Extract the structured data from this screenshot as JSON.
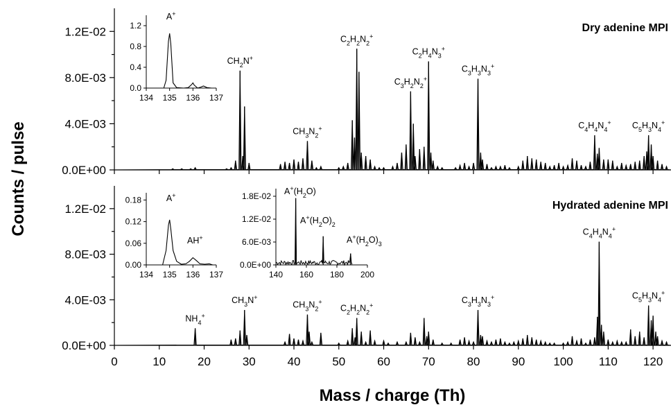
{
  "ylabel": "Counts / pulse",
  "xlabel": "Mass / charge (Th)",
  "chart_data": [
    {
      "type": "line",
      "title": "Dry adenine MPI",
      "xlim": [
        0,
        124
      ],
      "ylim": [
        0,
        0.014
      ],
      "yticks": [
        "0.0E+00",
        "4.0E-03",
        "8.0E-03",
        "1.2E-02"
      ],
      "ytick_values": [
        0,
        0.004,
        0.008,
        0.012
      ],
      "peaks": [
        [
          13,
          0.0001
        ],
        [
          15,
          0.0001
        ],
        [
          17,
          0.0001
        ],
        [
          18,
          0.0002
        ],
        [
          25,
          0.0001
        ],
        [
          26,
          0.0002
        ],
        [
          27,
          0.0008
        ],
        [
          28,
          0.0086
        ],
        [
          28.6,
          0.0012
        ],
        [
          29,
          0.0055
        ],
        [
          30,
          0.0006
        ],
        [
          37,
          0.0005
        ],
        [
          38,
          0.0007
        ],
        [
          39,
          0.0006
        ],
        [
          40,
          0.0009
        ],
        [
          41,
          0.0007
        ],
        [
          42,
          0.001
        ],
        [
          43,
          0.0025
        ],
        [
          44,
          0.0008
        ],
        [
          45,
          0.0002
        ],
        [
          46,
          0.0003
        ],
        [
          50,
          0.0002
        ],
        [
          51,
          0.0003
        ],
        [
          52,
          0.0006
        ],
        [
          53,
          0.0043
        ],
        [
          53.5,
          0.0028
        ],
        [
          54,
          0.0105
        ],
        [
          54.5,
          0.0085
        ],
        [
          55,
          0.0015
        ],
        [
          56,
          0.0012
        ],
        [
          57,
          0.0009
        ],
        [
          58,
          0.0003
        ],
        [
          59,
          0.0002
        ],
        [
          60,
          0.0002
        ],
        [
          62,
          0.0003
        ],
        [
          63,
          0.0006
        ],
        [
          64,
          0.0015
        ],
        [
          65,
          0.0022
        ],
        [
          66,
          0.0068
        ],
        [
          66.6,
          0.004
        ],
        [
          67,
          0.0012
        ],
        [
          68,
          0.0018
        ],
        [
          69,
          0.002
        ],
        [
          70,
          0.0094
        ],
        [
          70.5,
          0.0015
        ],
        [
          71,
          0.0008
        ],
        [
          72,
          0.0003
        ],
        [
          73,
          0.0002
        ],
        [
          76,
          0.0002
        ],
        [
          77,
          0.0004
        ],
        [
          78,
          0.0006
        ],
        [
          79,
          0.0003
        ],
        [
          80,
          0.0006
        ],
        [
          81,
          0.0079
        ],
        [
          81.6,
          0.0015
        ],
        [
          82,
          0.0009
        ],
        [
          83,
          0.0005
        ],
        [
          84,
          0.0002
        ],
        [
          85,
          0.0003
        ],
        [
          86,
          0.0003
        ],
        [
          87,
          0.0004
        ],
        [
          88,
          0.0002
        ],
        [
          90,
          0.0003
        ],
        [
          91,
          0.0008
        ],
        [
          92,
          0.0012
        ],
        [
          93,
          0.001
        ],
        [
          94,
          0.0009
        ],
        [
          95,
          0.0007
        ],
        [
          96,
          0.0006
        ],
        [
          97,
          0.0003
        ],
        [
          98,
          0.0004
        ],
        [
          99,
          0.0006
        ],
        [
          100,
          0.0003
        ],
        [
          101,
          0.0004
        ],
        [
          102,
          0.001
        ],
        [
          103,
          0.0008
        ],
        [
          104,
          0.0004
        ],
        [
          105,
          0.0003
        ],
        [
          106,
          0.0007
        ],
        [
          107,
          0.003
        ],
        [
          107.6,
          0.0014
        ],
        [
          108,
          0.0019
        ],
        [
          109,
          0.0009
        ],
        [
          110,
          0.0009
        ],
        [
          111,
          0.0008
        ],
        [
          112,
          0.0003
        ],
        [
          113,
          0.0006
        ],
        [
          114,
          0.0004
        ],
        [
          115,
          0.0005
        ],
        [
          116,
          0.0007
        ],
        [
          117,
          0.0008
        ],
        [
          118,
          0.0012
        ],
        [
          118.6,
          0.0016
        ],
        [
          119,
          0.003
        ],
        [
          119.6,
          0.0022
        ],
        [
          120,
          0.0012
        ],
        [
          121,
          0.0008
        ],
        [
          122,
          0.0005
        ],
        [
          123,
          0.0003
        ]
      ],
      "annotations": [
        {
          "text": "CH2N+",
          "x": 28
        },
        {
          "text": "CH3N2+",
          "x": 43
        },
        {
          "text": "C2H2N2+",
          "x": 54
        },
        {
          "text": "C3H2N2+",
          "x": 66
        },
        {
          "text": "C2H4N3+",
          "x": 70
        },
        {
          "text": "C3H3N3+",
          "x": 81
        },
        {
          "text": "C4H4N4+",
          "x": 107
        },
        {
          "text": "C5H3N4+",
          "x": 119
        }
      ],
      "inset": {
        "label": "A+",
        "xlim": [
          134,
          137
        ],
        "ylim": [
          0,
          1.4
        ],
        "xticks": [
          "134",
          "135",
          "136",
          "137"
        ],
        "yticks": [
          "0.0",
          "0.4",
          "0.8",
          "1.2"
        ],
        "ytick_values": [
          0,
          0.4,
          0.8,
          1.2
        ],
        "x": [
          134.5,
          134.75,
          134.85,
          134.95,
          135.0,
          135.05,
          135.15,
          135.3,
          135.6,
          135.8,
          135.95,
          136.0,
          136.05,
          136.2,
          136.35,
          136.45,
          136.6,
          136.8
        ],
        "y": [
          0.0,
          0.0,
          0.15,
          0.9,
          1.05,
          0.85,
          0.1,
          0.01,
          0.0,
          0.01,
          0.07,
          0.1,
          0.06,
          0.0,
          0.02,
          0.04,
          0.01,
          0.0
        ]
      }
    },
    {
      "type": "line",
      "title": "Hydrated adenine MPI",
      "xlim": [
        0,
        124
      ],
      "ylim": [
        0,
        0.014
      ],
      "yticks": [
        "0.0E+00",
        "4.0E-03",
        "8.0E-03",
        "1.2E-02"
      ],
      "ytick_values": [
        0,
        0.004,
        0.008,
        0.012
      ],
      "xticks": [
        "0",
        "10",
        "20",
        "30",
        "40",
        "50",
        "60",
        "70",
        "80",
        "90",
        "100",
        "110",
        "120"
      ],
      "xtick_values": [
        0,
        10,
        20,
        30,
        40,
        50,
        60,
        70,
        80,
        90,
        100,
        110,
        120
      ],
      "peaks": [
        [
          18,
          0.0015
        ],
        [
          26,
          0.0005
        ],
        [
          27,
          0.0006
        ],
        [
          28,
          0.0013
        ],
        [
          29,
          0.0031
        ],
        [
          29.5,
          0.0009
        ],
        [
          38,
          0.0003
        ],
        [
          39,
          0.001
        ],
        [
          40,
          0.0006
        ],
        [
          41,
          0.0005
        ],
        [
          42,
          0.0004
        ],
        [
          43,
          0.0027
        ],
        [
          43.4,
          0.0012
        ],
        [
          44,
          0.0003
        ],
        [
          46,
          0.0011
        ],
        [
          50,
          0.0002
        ],
        [
          52,
          0.0004
        ],
        [
          53,
          0.0015
        ],
        [
          53.6,
          0.0007
        ],
        [
          54,
          0.0024
        ],
        [
          55,
          0.0012
        ],
        [
          56,
          0.0003
        ],
        [
          57,
          0.0013
        ],
        [
          58,
          0.0004
        ],
        [
          60,
          0.0004
        ],
        [
          61,
          0.0002
        ],
        [
          63,
          0.0003
        ],
        [
          65,
          0.0003
        ],
        [
          66,
          0.0011
        ],
        [
          67,
          0.0007
        ],
        [
          68,
          0.0003
        ],
        [
          69,
          0.0024
        ],
        [
          69.6,
          0.0008
        ],
        [
          70,
          0.0012
        ],
        [
          71,
          0.0005
        ],
        [
          73,
          0.0002
        ],
        [
          75,
          0.0002
        ],
        [
          77,
          0.0005
        ],
        [
          78,
          0.0007
        ],
        [
          79,
          0.0004
        ],
        [
          80,
          0.0003
        ],
        [
          81,
          0.0031
        ],
        [
          81.6,
          0.0009
        ],
        [
          82,
          0.0008
        ],
        [
          83,
          0.0004
        ],
        [
          84,
          0.0003
        ],
        [
          85,
          0.0005
        ],
        [
          86,
          0.0006
        ],
        [
          87,
          0.0003
        ],
        [
          88,
          0.0002
        ],
        [
          89,
          0.0003
        ],
        [
          90,
          0.0004
        ],
        [
          91,
          0.0006
        ],
        [
          92,
          0.0009
        ],
        [
          93,
          0.0007
        ],
        [
          94,
          0.0005
        ],
        [
          95,
          0.0004
        ],
        [
          96,
          0.0003
        ],
        [
          97,
          0.0002
        ],
        [
          98,
          0.0002
        ],
        [
          100,
          0.0002
        ],
        [
          101,
          0.0003
        ],
        [
          102,
          0.0008
        ],
        [
          103,
          0.0004
        ],
        [
          104,
          0.0006
        ],
        [
          105,
          0.0002
        ],
        [
          106,
          0.0005
        ],
        [
          107,
          0.0007
        ],
        [
          107.6,
          0.0025
        ],
        [
          108,
          0.0091
        ],
        [
          108.5,
          0.0018
        ],
        [
          109,
          0.0012
        ],
        [
          110,
          0.0005
        ],
        [
          111,
          0.0003
        ],
        [
          112,
          0.0004
        ],
        [
          113,
          0.0003
        ],
        [
          114,
          0.0003
        ],
        [
          115,
          0.0014
        ],
        [
          116,
          0.0008
        ],
        [
          117,
          0.0012
        ],
        [
          118,
          0.0007
        ],
        [
          119,
          0.0035
        ],
        [
          119.6,
          0.0022
        ],
        [
          120,
          0.0026
        ],
        [
          120.6,
          0.0012
        ],
        [
          121,
          0.0008
        ],
        [
          122,
          0.0004
        ],
        [
          123,
          0.0003
        ]
      ],
      "annotations": [
        {
          "text": "NH4+",
          "x": 18
        },
        {
          "text": "CH3N+",
          "x": 29
        },
        {
          "text": "CH3N2+",
          "x": 43
        },
        {
          "text": "C2H2N2+",
          "x": 54
        },
        {
          "text": "C3H3N3+",
          "x": 81
        },
        {
          "text": "C4H4N4+",
          "x": 108
        },
        {
          "text": "C5H3N4+",
          "x": 119
        }
      ],
      "inset_a": {
        "labels": [
          "A+",
          "AH+"
        ],
        "xlim": [
          134,
          137
        ],
        "ylim": [
          0,
          0.2
        ],
        "xticks": [
          "134",
          "135",
          "136",
          "137"
        ],
        "yticks": [
          "0.00",
          "0.06",
          "0.12",
          "0.18"
        ],
        "ytick_values": [
          0,
          0.06,
          0.12,
          0.18
        ],
        "x": [
          134.3,
          134.7,
          134.85,
          134.95,
          135.0,
          135.05,
          135.15,
          135.3,
          135.5,
          135.7,
          135.85,
          136.0,
          136.15,
          136.3,
          136.5,
          136.7,
          136.85
        ],
        "y": [
          0.0,
          0.0,
          0.04,
          0.11,
          0.125,
          0.1,
          0.04,
          0.01,
          0.002,
          0.003,
          0.01,
          0.02,
          0.012,
          0.003,
          0.002,
          0.003,
          0.0
        ]
      },
      "inset_b": {
        "labels": [
          "A+(H2O)",
          "A+(H2O)2",
          "A+(H2O)3"
        ],
        "xlim": [
          140,
          200
        ],
        "ylim": [
          0,
          0.02
        ],
        "xticks": [
          "140",
          "160",
          "180",
          "200"
        ],
        "xtick_values": [
          140,
          160,
          180,
          200
        ],
        "yticks": [
          "0.0E+00",
          "6.0E-03",
          "1.2E-02",
          "1.8E-02"
        ],
        "ytick_values": [
          0,
          0.006,
          0.012,
          0.018
        ],
        "peaks": [
          [
            153,
            0.0175
          ],
          [
            171,
            0.0075
          ],
          [
            189,
            0.003
          ]
        ]
      }
    }
  ]
}
